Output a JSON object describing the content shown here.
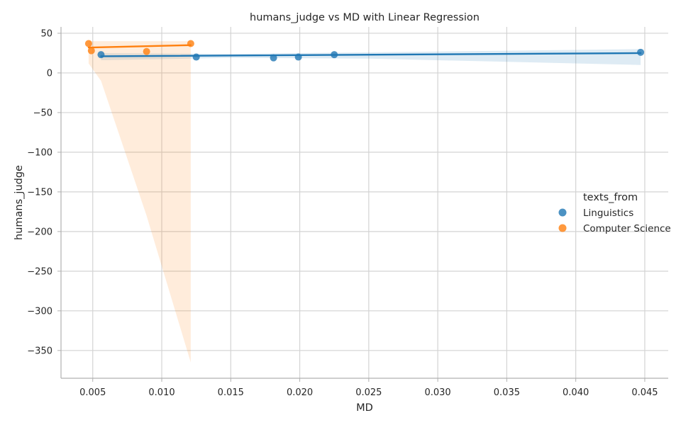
{
  "chart_data": {
    "type": "scatter",
    "title": "humans_judge vs MD with Linear Regression",
    "xlabel": "MD",
    "ylabel": "humans_judge",
    "xlim": [
      0.0027,
      0.0467
    ],
    "ylim": [
      -385,
      58
    ],
    "xticks": [
      0.005,
      0.01,
      0.015,
      0.02,
      0.025,
      0.03,
      0.035,
      0.04,
      0.045
    ],
    "xtick_labels": [
      "0.005",
      "0.010",
      "0.015",
      "0.020",
      "0.025",
      "0.030",
      "0.035",
      "0.040",
      "0.045"
    ],
    "yticks": [
      50,
      0,
      -50,
      -100,
      -150,
      -200,
      -250,
      -300,
      -350
    ],
    "ytick_labels": [
      "50",
      "0",
      "−50",
      "−100",
      "−150",
      "−200",
      "−250",
      "−300",
      "−350"
    ],
    "grid": true,
    "legend": {
      "title": "texts_from",
      "placement": "center-right"
    },
    "series": [
      {
        "name": "Linguistics",
        "color": "#1f77b4",
        "points": [
          [
            0.0056,
            23
          ],
          [
            0.0125,
            20
          ],
          [
            0.0181,
            19
          ],
          [
            0.0199,
            20
          ],
          [
            0.0225,
            23
          ],
          [
            0.0447,
            26
          ]
        ],
        "regression": {
          "x": [
            0.0056,
            0.0447
          ],
          "y": [
            21,
            25
          ]
        },
        "ci_band": [
          [
            0.0056,
            16,
            25
          ],
          [
            0.015,
            19,
            24
          ],
          [
            0.025,
            18,
            26
          ],
          [
            0.035,
            14,
            28
          ],
          [
            0.0447,
            10,
            30
          ]
        ]
      },
      {
        "name": "Computer Science",
        "color": "#ff7f0e",
        "points": [
          [
            0.0047,
            37
          ],
          [
            0.0049,
            28
          ],
          [
            0.0089,
            27
          ],
          [
            0.0121,
            37
          ]
        ],
        "regression": {
          "x": [
            0.0047,
            0.0121
          ],
          "y": [
            32,
            35
          ]
        },
        "ci_band": [
          [
            0.0047,
            12,
            40
          ],
          [
            0.0056,
            -10,
            40
          ],
          [
            0.0089,
            -180,
            40
          ],
          [
            0.0121,
            -365,
            40
          ]
        ]
      }
    ]
  }
}
